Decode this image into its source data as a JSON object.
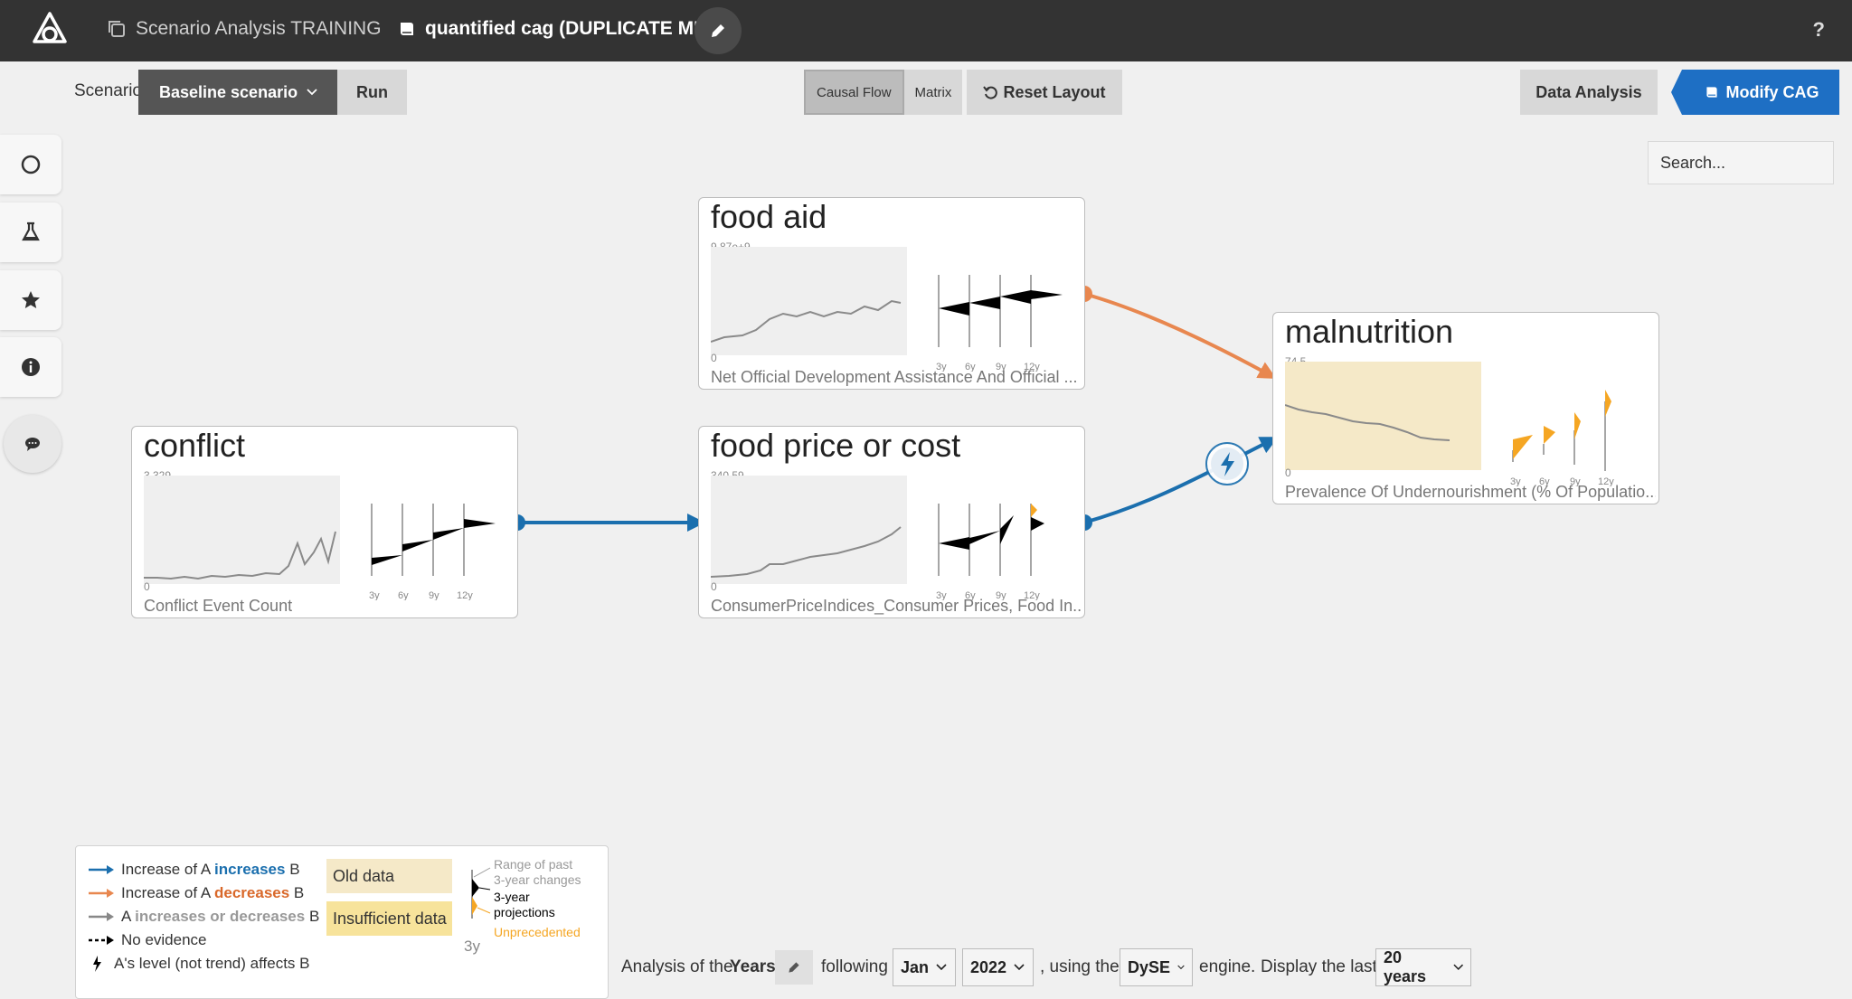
{
  "nav": {
    "project_name": "Scenario Analysis TRAINING",
    "model_name": "quantified cag (DUPLICATE ME)",
    "help": "?"
  },
  "toolbar": {
    "scenario_label": "Scenario",
    "scenario_value": "Baseline scenario",
    "run_label": "Run",
    "view_tabs": [
      "Causal Flow",
      "Matrix"
    ],
    "active_view": "Causal Flow",
    "reset_label": "Reset Layout",
    "data_analysis_label": "Data Analysis",
    "modify_label": "Modify CAG"
  },
  "search": {
    "placeholder": "Search..."
  },
  "sidebar": {
    "icons": [
      "circle-icon",
      "flask-icon",
      "star-icon",
      "info-icon",
      "chat-icon"
    ]
  },
  "nodes": {
    "food_aid": {
      "title": "food aid",
      "y_max": "9.87e+9",
      "y_min": "0",
      "subtitle": "Net Official Development Assistance And Official ...",
      "horizons": [
        "3y",
        "6y",
        "9y",
        "12y"
      ]
    },
    "food_price": {
      "title": "food price or cost",
      "y_max": "340.59",
      "y_min": "0",
      "subtitle": "ConsumerPriceIndices_Consumer Prices, Food In...",
      "horizons": [
        "3y",
        "6y",
        "9y",
        "12y"
      ]
    },
    "conflict": {
      "title": "conflict",
      "y_max": "3,329",
      "y_min": "0",
      "subtitle": "Conflict Event Count",
      "horizons": [
        "3y",
        "6y",
        "9y",
        "12y"
      ]
    },
    "malnutrition": {
      "title": "malnutrition",
      "y_max": "74.5",
      "y_min": "0",
      "subtitle": "Prevalence Of Undernourishment (% Of Populatio...",
      "horizons": [
        "3y",
        "6y",
        "9y",
        "12y"
      ]
    }
  },
  "colors": {
    "increase": "#1b6fae",
    "decrease": "#e8874f",
    "unprecedented": "#f5a623",
    "old_data": "#f5e9c8",
    "insufficient_data": "#f7e39b"
  },
  "legend": {
    "row1_pre": "Increase of A ",
    "row1_emph": "increases",
    "row1_post": " B",
    "row2_pre": "Increase of A ",
    "row2_emph": "decreases",
    "row2_post": " B",
    "row3_pre": "A ",
    "row3_emph": "increases or decreases",
    "row3_post": " B",
    "row4": "No evidence",
    "row5": "A's level (not trend) affects B",
    "old_data": "Old data",
    "insufficient_data": "Insufficient data",
    "proj_range1": "Range of past",
    "proj_range2": "3-year changes",
    "proj_proj1": "3-year",
    "proj_proj2": "projections",
    "proj_unprecedented": "Unprecedented",
    "proj_horizon": "3y"
  },
  "analysis": {
    "prefix": "Analysis of the",
    "unit": "Years",
    "following": "following",
    "month": "Jan",
    "year": "2022",
    "using": ", using the",
    "engine": "DySE",
    "engine_suffix": "engine.",
    "display": "Display the last",
    "window": "20 years"
  }
}
